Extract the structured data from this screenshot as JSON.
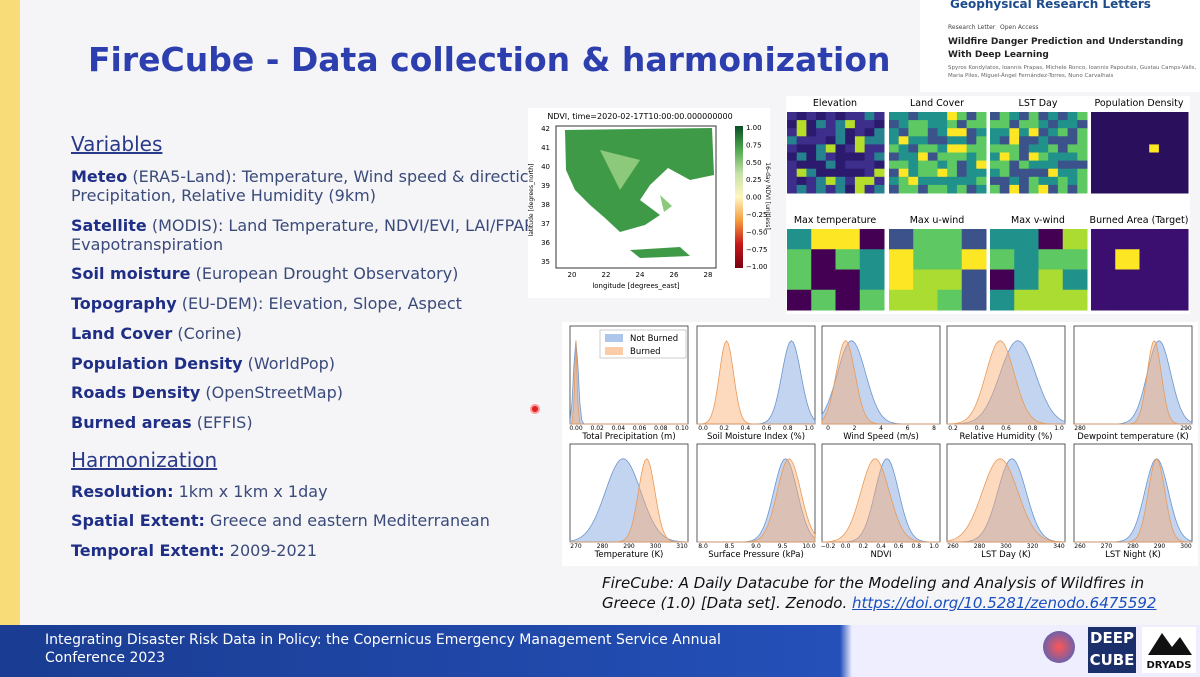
{
  "title": "FireCube - Data collection & harmonization",
  "paper": {
    "journal": "Geophysical Research Letters",
    "kind": "Research Letter",
    "access": "Open Access",
    "title": "Wildfire Danger Prediction and Understanding With Deep Learning",
    "authors": "Spyros Kondylatos, Ioannis Prapas, Michele Ronco, Ioannis Papoutsis, Gustau Camps-Valls, Maria Piles, Miguel-Ángel Fernández-Torres, Nuno Carvalhais"
  },
  "variables": {
    "heading": "Variables",
    "items": [
      {
        "label": "Meteo",
        "detail": [
          "(ERA5-Land): Temperature, Wind speed & directic",
          "Precipitation, Relative Humidity (9km)"
        ]
      },
      {
        "label": "Satellite",
        "detail": [
          "(MODIS): Land Temperature, NDVI/EVI, LAI/FPAR,",
          "Evapotranspiration"
        ]
      },
      {
        "label": "Soil moisture",
        "detail": [
          "(European Drought Observatory)"
        ]
      },
      {
        "label": "Topography",
        "detail": [
          "(EU-DEM): Elevation, Slope, Aspect"
        ]
      },
      {
        "label": "Land Cover",
        "detail": [
          "(Corine)"
        ]
      },
      {
        "label": "Population Density",
        "detail": [
          "(WorldPop)"
        ]
      },
      {
        "label": "Roads Density",
        "detail": [
          "(OpenStreetMap)"
        ]
      },
      {
        "label": "Burned areas",
        "detail": [
          "(EFFIS)"
        ]
      }
    ]
  },
  "harmonization": {
    "heading": "Harmonization",
    "items": [
      {
        "label": "Resolution:",
        "detail": [
          "1km x 1km x 1day"
        ]
      },
      {
        "label": "Spatial Extent:",
        "detail": [
          "Greece and eastern Mediterranean"
        ]
      },
      {
        "label": "Temporal Extent:",
        "detail": [
          "2009-2021"
        ]
      }
    ]
  },
  "ndvi_map": {
    "title": "NDVI, time=2020-02-17T10:00:00.000000000",
    "xlabel": "longitude [degrees_east]",
    "ylabel": "latitude [degrees_north]",
    "xticks": [
      "20",
      "22",
      "24",
      "26",
      "28"
    ],
    "yticks": [
      "35",
      "36",
      "37",
      "38",
      "39",
      "40",
      "41",
      "42"
    ],
    "colorbar_label": "16-day NDVI [unitless]",
    "colorbar_ticks": [
      "1.00",
      "0.75",
      "0.50",
      "0.25",
      "0.00",
      "−0.25",
      "−0.50",
      "−0.75",
      "−1.00"
    ]
  },
  "thumbnails": [
    "Elevation",
    "Land Cover",
    "LST Day",
    "Population Density",
    "Max temperature",
    "Max u-wind",
    "Max v-wind",
    "Burned Area (Target)"
  ],
  "histograms": {
    "legend": [
      "Not Burned",
      "Burned"
    ],
    "panels": [
      {
        "title": "Total Precipitation (m)",
        "ticks": [
          "0.00",
          "0.02",
          "0.04",
          "0.06",
          "0.08",
          "0.10"
        ]
      },
      {
        "title": "Soil Moisture Index (%)",
        "ticks": [
          "0.0",
          "0.2",
          "0.4",
          "0.6",
          "0.8",
          "1.0"
        ]
      },
      {
        "title": "Wind Speed (m/s)",
        "ticks": [
          "0",
          "2",
          "4",
          "6",
          "8"
        ]
      },
      {
        "title": "Relative Humidity (%)",
        "ticks": [
          "0.2",
          "0.4",
          "0.6",
          "0.8",
          "1.0"
        ]
      },
      {
        "title": "Dewpoint temperature (K)",
        "ticks": [
          "280",
          "290"
        ]
      },
      {
        "title": "Temperature (K)",
        "ticks": [
          "270",
          "280",
          "290",
          "300",
          "310"
        ]
      },
      {
        "title": "Surface Pressure (kPa)",
        "ticks": [
          "8.0",
          "8.5",
          "9.0",
          "9.5",
          "10.0"
        ]
      },
      {
        "title": "NDVI",
        "ticks": [
          "−0.2",
          "0.0",
          "0.2",
          "0.4",
          "0.6",
          "0.8",
          "1.0"
        ]
      },
      {
        "title": "LST Day (K)",
        "ticks": [
          "260",
          "280",
          "300",
          "320",
          "340"
        ]
      },
      {
        "title": "LST Night (K)",
        "ticks": [
          "260",
          "270",
          "280",
          "290",
          "300"
        ]
      }
    ]
  },
  "citation": {
    "text": "FireCube: A Daily Datacube for the Modeling and Analysis of Wildfires in Greece (1.0) [Data set]. Zenodo.",
    "link": "https://doi.org/10.5281/zenodo.6475592"
  },
  "footer": {
    "text": "Integrating Disaster Risk Data in Policy: the Copernicus Emergency Management Service Annual Conference 2023",
    "logos": [
      "DEEP",
      "CUBE",
      "DRYADS"
    ]
  }
}
